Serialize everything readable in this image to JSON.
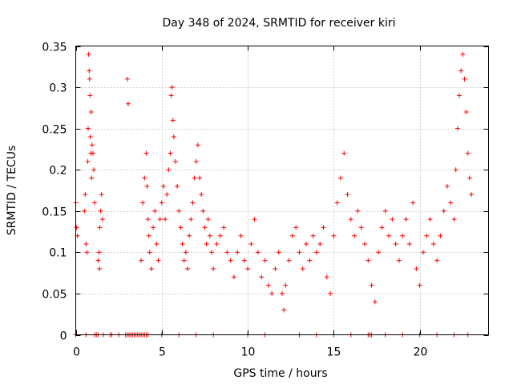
{
  "chart_data": {
    "type": "scatter",
    "title": "Day 348 of 2024, SRMTID for receiver kiri",
    "xlabel": "GPS time / hours",
    "ylabel": "SRMTID / TECUs",
    "xlim": [
      0,
      24
    ],
    "ylim": [
      0,
      0.35
    ],
    "xticks": [
      0,
      5,
      10,
      15,
      20
    ],
    "xtick_labels": [
      "0",
      "5",
      "10",
      "15",
      "20"
    ],
    "yticks": [
      0,
      0.05,
      0.1,
      0.15,
      0.2,
      0.25,
      0.3,
      0.35
    ],
    "ytick_labels": [
      "0",
      "0.05",
      "0.1",
      "0.15",
      "0.2",
      "0.25",
      "0.3",
      "0.35"
    ],
    "grid": true,
    "marker": "plus",
    "color": "#ff0000",
    "legend": "none",
    "series": [
      {
        "name": "SRMTID",
        "points": [
          [
            0.0,
            0.16
          ],
          [
            0.05,
            0.13
          ],
          [
            0.1,
            0.12
          ],
          [
            0.5,
            0.15
          ],
          [
            0.55,
            0.17
          ],
          [
            0.6,
            0.11
          ],
          [
            0.65,
            0.1
          ],
          [
            0.7,
            0.21
          ],
          [
            0.72,
            0.25
          ],
          [
            0.75,
            0.34
          ],
          [
            0.78,
            0.32
          ],
          [
            0.8,
            0.31
          ],
          [
            0.83,
            0.29
          ],
          [
            0.85,
            0.24
          ],
          [
            0.88,
            0.22
          ],
          [
            0.9,
            0.27
          ],
          [
            0.92,
            0.19
          ],
          [
            0.95,
            0.23
          ],
          [
            1.0,
            0.22
          ],
          [
            1.05,
            0.2
          ],
          [
            1.1,
            0.16
          ],
          [
            1.3,
            0.09
          ],
          [
            1.35,
            0.1
          ],
          [
            1.4,
            0.13
          ],
          [
            1.45,
            0.15
          ],
          [
            1.5,
            0.17
          ],
          [
            1.55,
            0.14
          ],
          [
            1.38,
            0.08
          ],
          [
            3.0,
            0.31
          ],
          [
            3.05,
            0.28
          ],
          [
            3.8,
            0.09
          ],
          [
            3.9,
            0.16
          ],
          [
            4.0,
            0.19
          ],
          [
            4.1,
            0.22
          ],
          [
            4.15,
            0.18
          ],
          [
            4.2,
            0.14
          ],
          [
            4.25,
            0.12
          ],
          [
            4.3,
            0.1
          ],
          [
            4.4,
            0.08
          ],
          [
            4.5,
            0.13
          ],
          [
            4.6,
            0.15
          ],
          [
            4.7,
            0.11
          ],
          [
            4.8,
            0.09
          ],
          [
            4.9,
            0.14
          ],
          [
            5.0,
            0.16
          ],
          [
            5.1,
            0.18
          ],
          [
            5.2,
            0.14
          ],
          [
            5.3,
            0.17
          ],
          [
            5.4,
            0.2
          ],
          [
            5.5,
            0.22
          ],
          [
            5.55,
            0.29
          ],
          [
            5.6,
            0.3
          ],
          [
            5.65,
            0.26
          ],
          [
            5.7,
            0.24
          ],
          [
            5.8,
            0.21
          ],
          [
            5.9,
            0.18
          ],
          [
            6.0,
            0.15
          ],
          [
            6.1,
            0.13
          ],
          [
            6.2,
            0.11
          ],
          [
            6.3,
            0.09
          ],
          [
            6.4,
            0.1
          ],
          [
            6.5,
            0.08
          ],
          [
            6.6,
            0.12
          ],
          [
            6.7,
            0.14
          ],
          [
            6.8,
            0.16
          ],
          [
            6.9,
            0.19
          ],
          [
            7.0,
            0.21
          ],
          [
            7.1,
            0.23
          ],
          [
            7.2,
            0.19
          ],
          [
            7.3,
            0.17
          ],
          [
            7.4,
            0.15
          ],
          [
            7.5,
            0.13
          ],
          [
            7.6,
            0.11
          ],
          [
            7.7,
            0.14
          ],
          [
            7.8,
            0.12
          ],
          [
            7.9,
            0.1
          ],
          [
            8.0,
            0.08
          ],
          [
            8.2,
            0.11
          ],
          [
            8.4,
            0.12
          ],
          [
            8.6,
            0.13
          ],
          [
            8.8,
            0.1
          ],
          [
            9.0,
            0.09
          ],
          [
            9.2,
            0.07
          ],
          [
            9.4,
            0.1
          ],
          [
            9.6,
            0.12
          ],
          [
            9.8,
            0.09
          ],
          [
            10.0,
            0.08
          ],
          [
            10.2,
            0.11
          ],
          [
            10.4,
            0.14
          ],
          [
            10.6,
            0.1
          ],
          [
            10.8,
            0.07
          ],
          [
            11.0,
            0.09
          ],
          [
            11.2,
            0.06
          ],
          [
            11.4,
            0.05
          ],
          [
            11.6,
            0.08
          ],
          [
            11.8,
            0.1
          ],
          [
            12.0,
            0.05
          ],
          [
            12.1,
            0.03
          ],
          [
            12.2,
            0.06
          ],
          [
            12.4,
            0.09
          ],
          [
            12.6,
            0.12
          ],
          [
            12.8,
            0.13
          ],
          [
            13.0,
            0.1
          ],
          [
            13.2,
            0.08
          ],
          [
            13.4,
            0.11
          ],
          [
            13.6,
            0.09
          ],
          [
            13.8,
            0.12
          ],
          [
            14.0,
            0.1
          ],
          [
            14.2,
            0.11
          ],
          [
            14.4,
            0.13
          ],
          [
            14.6,
            0.07
          ],
          [
            14.8,
            0.05
          ],
          [
            15.0,
            0.12
          ],
          [
            15.2,
            0.16
          ],
          [
            15.4,
            0.19
          ],
          [
            15.6,
            0.22
          ],
          [
            15.8,
            0.17
          ],
          [
            16.0,
            0.14
          ],
          [
            16.2,
            0.12
          ],
          [
            16.4,
            0.15
          ],
          [
            16.6,
            0.13
          ],
          [
            16.8,
            0.11
          ],
          [
            17.0,
            0.09
          ],
          [
            17.2,
            0.06
          ],
          [
            17.4,
            0.04
          ],
          [
            17.6,
            0.1
          ],
          [
            17.8,
            0.13
          ],
          [
            18.0,
            0.15
          ],
          [
            18.2,
            0.12
          ],
          [
            18.4,
            0.14
          ],
          [
            18.6,
            0.11
          ],
          [
            18.8,
            0.09
          ],
          [
            19.0,
            0.12
          ],
          [
            19.2,
            0.14
          ],
          [
            19.4,
            0.11
          ],
          [
            19.6,
            0.16
          ],
          [
            19.8,
            0.08
          ],
          [
            20.0,
            0.06
          ],
          [
            20.2,
            0.1
          ],
          [
            20.4,
            0.12
          ],
          [
            20.6,
            0.14
          ],
          [
            20.8,
            0.11
          ],
          [
            21.0,
            0.09
          ],
          [
            21.2,
            0.12
          ],
          [
            21.4,
            0.15
          ],
          [
            21.6,
            0.18
          ],
          [
            21.8,
            0.16
          ],
          [
            22.0,
            0.14
          ],
          [
            22.1,
            0.2
          ],
          [
            22.2,
            0.25
          ],
          [
            22.3,
            0.29
          ],
          [
            22.4,
            0.32
          ],
          [
            22.5,
            0.34
          ],
          [
            22.6,
            0.31
          ],
          [
            22.7,
            0.27
          ],
          [
            22.8,
            0.22
          ],
          [
            22.9,
            0.19
          ],
          [
            23.0,
            0.17
          ]
        ],
        "zero_points_x": [
          0.0,
          0.6,
          1.1,
          1.2,
          1.3,
          1.6,
          2.0,
          2.1,
          2.5,
          2.9,
          3.0,
          3.1,
          3.2,
          3.3,
          3.4,
          3.5,
          3.6,
          3.7,
          3.8,
          3.9,
          4.0,
          4.1,
          4.2,
          5.0,
          6.0,
          7.0,
          8.0,
          10.0,
          11.0,
          13.0,
          14.0,
          15.0,
          16.0,
          17.0,
          17.1,
          17.2,
          18.0,
          19.0,
          20.0,
          21.0,
          22.0,
          22.8
        ]
      }
    ]
  }
}
